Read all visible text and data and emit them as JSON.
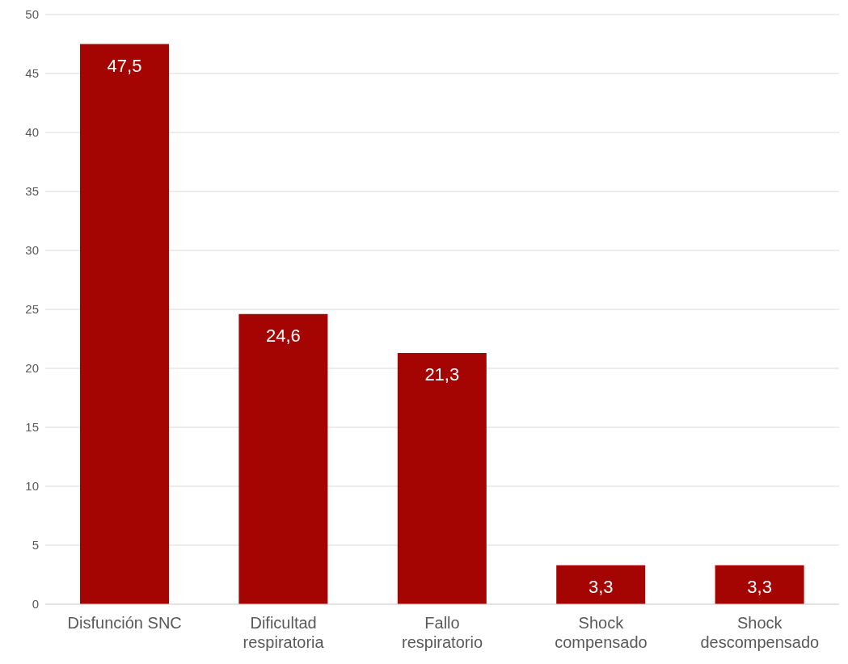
{
  "chart_data": {
    "type": "bar",
    "categories": [
      "Disfunción SNC",
      "Dificultad\nrespiratoria",
      "Fallo\nrespiratorio",
      "Shock\ncompensado",
      "Shock\ndescompensado"
    ],
    "values": [
      47.5,
      24.6,
      21.3,
      3.3,
      3.3
    ],
    "value_labels": [
      "47,5",
      "24,6",
      "21,3",
      "3,3",
      "3,3"
    ],
    "color": "#a50502",
    "ylim": [
      0,
      50
    ],
    "yticks": [
      0,
      5,
      10,
      15,
      20,
      25,
      30,
      35,
      40,
      45,
      50
    ],
    "grid": "y",
    "legend": false
  }
}
